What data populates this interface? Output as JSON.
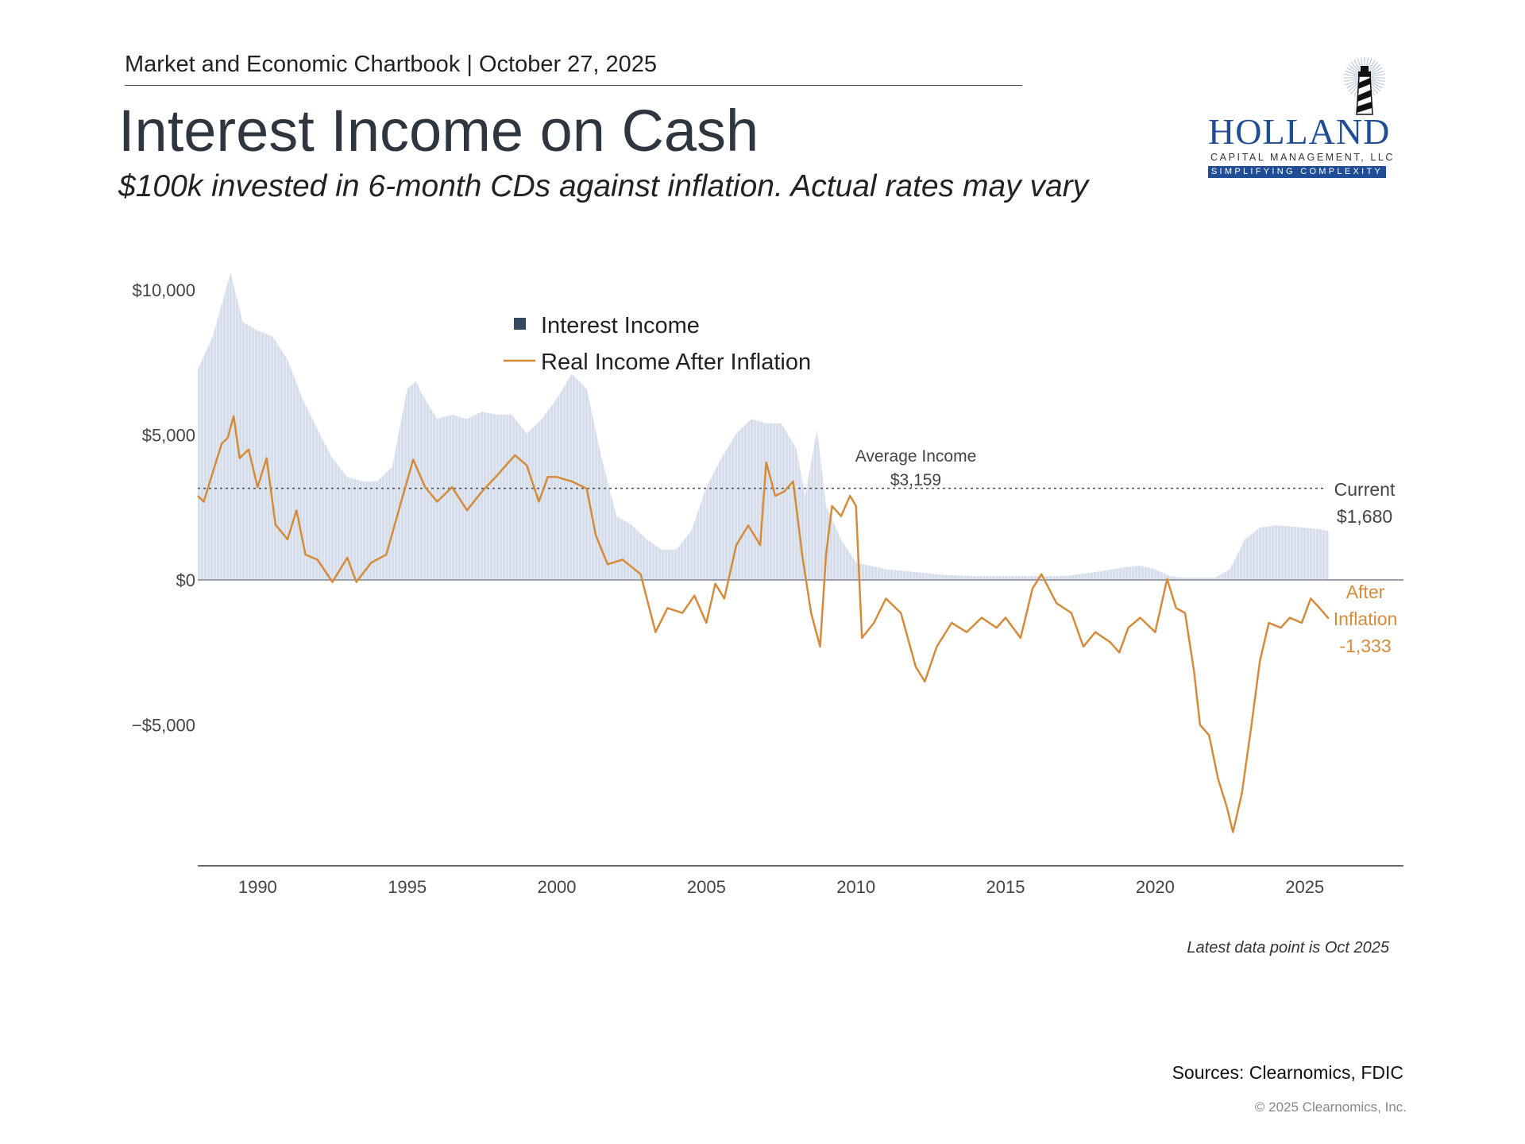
{
  "header": {
    "publication": "Market and Economic Chartbook | October 27, 2025",
    "title": "Interest Income on Cash",
    "subtitle": "$100k invested in 6-month CDs against inflation. Actual rates may vary"
  },
  "logo": {
    "name": "HOLLAND",
    "line2": "CAPITAL MANAGEMENT, LLC",
    "tagline": "SIMPLIFYING COMPLEXITY",
    "colors": {
      "brand": "#1f4e96"
    }
  },
  "chart_data": {
    "type": "area+line",
    "title": "",
    "xlabel": "",
    "ylabel": "",
    "xlim": [
      1988.0,
      2028.3
    ],
    "ylim": [
      -9860,
      10900
    ],
    "x_ticks": [
      1990,
      1995,
      2000,
      2005,
      2010,
      2015,
      2020,
      2025
    ],
    "x_tick_labels": [
      "1990",
      "1995",
      "2000",
      "2005",
      "2010",
      "2015",
      "2020",
      "2025"
    ],
    "y_ticks": [
      10000,
      5000,
      0,
      -5000
    ],
    "y_tick_labels": [
      "$10,000",
      "$5,000",
      "$0",
      "−$5,000"
    ],
    "grid": false,
    "legend": {
      "placement": "top-center",
      "entries": [
        "Interest Income",
        "Real Income After Inflation"
      ]
    },
    "colors": {
      "interest_income": "#d5deea",
      "interest_legend": "#34495e",
      "real_income": "#d58b3c",
      "average_line": "#555555"
    },
    "series": [
      {
        "name": "Interest Income",
        "type": "bar-area",
        "x": [
          1988.0,
          1988.5,
          1989.1,
          1989.5,
          1990.0,
          1990.5,
          1991.0,
          1991.5,
          1992.0,
          1992.5,
          1993.0,
          1993.5,
          1994.0,
          1994.5,
          1995.0,
          1995.3,
          1995.5,
          1996.0,
          1996.5,
          1997.0,
          1997.5,
          1998.0,
          1998.5,
          1999.0,
          1999.5,
          2000.0,
          2000.5,
          2001.0,
          2001.5,
          2002.0,
          2002.5,
          2003.0,
          2003.5,
          2004.0,
          2004.5,
          2005.0,
          2005.5,
          2006.0,
          2006.5,
          2007.0,
          2007.5,
          2008.0,
          2008.3,
          2008.7,
          2009.0,
          2009.5,
          2010.0,
          2011.0,
          2012.0,
          2013.0,
          2014.0,
          2015.0,
          2016.0,
          2017.0,
          2018.0,
          2019.0,
          2019.5,
          2020.0,
          2020.5,
          2021.0,
          2022.0,
          2022.5,
          2023.0,
          2023.5,
          2024.0,
          2024.5,
          2025.0,
          2025.5,
          2025.8
        ],
        "values": [
          7250,
          8400,
          10600,
          8900,
          8600,
          8400,
          7600,
          6250,
          5200,
          4200,
          3550,
          3400,
          3400,
          3900,
          6600,
          6850,
          6400,
          5550,
          5700,
          5550,
          5800,
          5700,
          5700,
          5050,
          5550,
          6250,
          7100,
          6600,
          4200,
          2200,
          1900,
          1400,
          1050,
          1050,
          1700,
          3200,
          4200,
          5050,
          5550,
          5400,
          5400,
          4550,
          2900,
          5200,
          2550,
          1400,
          600,
          370,
          270,
          170,
          130,
          130,
          130,
          130,
          270,
          440,
          500,
          370,
          130,
          70,
          70,
          370,
          1400,
          1800,
          1880,
          1850,
          1800,
          1750,
          1680
        ]
      },
      {
        "name": "Real Income After Inflation",
        "type": "line",
        "x": [
          1988.0,
          1988.2,
          1988.5,
          1988.8,
          1989.0,
          1989.2,
          1989.4,
          1989.7,
          1990.0,
          1990.3,
          1990.6,
          1991.0,
          1991.3,
          1991.6,
          1992.0,
          1992.5,
          1993.0,
          1993.3,
          1993.8,
          1994.3,
          1994.8,
          1995.2,
          1995.6,
          1996.0,
          1996.5,
          1997.0,
          1997.5,
          1998.0,
          1998.6,
          1999.0,
          1999.4,
          1999.7,
          2000.0,
          2000.5,
          2001.0,
          2001.3,
          2001.7,
          2002.2,
          2002.8,
          2003.3,
          2003.7,
          2004.2,
          2004.6,
          2005.0,
          2005.3,
          2005.6,
          2006.0,
          2006.4,
          2006.8,
          2007.0,
          2007.3,
          2007.6,
          2007.9,
          2008.2,
          2008.5,
          2008.8,
          2009.0,
          2009.2,
          2009.5,
          2009.8,
          2010.0,
          2010.2,
          2010.6,
          2011.0,
          2011.5,
          2012.0,
          2012.3,
          2012.7,
          2013.2,
          2013.7,
          2014.2,
          2014.7,
          2015.0,
          2015.5,
          2015.9,
          2016.2,
          2016.7,
          2017.2,
          2017.6,
          2018.0,
          2018.5,
          2018.8,
          2019.1,
          2019.5,
          2020.0,
          2020.4,
          2020.7,
          2021.0,
          2021.3,
          2021.5,
          2021.8,
          2022.1,
          2022.4,
          2022.6,
          2022.9,
          2023.2,
          2023.5,
          2023.8,
          2024.2,
          2024.5,
          2024.9,
          2025.2,
          2025.5,
          2025.8
        ],
        "values": [
          2900,
          2700,
          3700,
          4700,
          4900,
          5650,
          4200,
          4500,
          3200,
          4200,
          1900,
          1400,
          2400,
          870,
          700,
          -70,
          770,
          -70,
          600,
          870,
          2700,
          4150,
          3200,
          2700,
          3200,
          2400,
          3050,
          3600,
          4300,
          3950,
          2700,
          3550,
          3550,
          3400,
          3150,
          1550,
          540,
          700,
          200,
          -1800,
          -970,
          -1140,
          -540,
          -1480,
          -130,
          -640,
          1200,
          1880,
          1200,
          4050,
          2900,
          3050,
          3400,
          870,
          -1140,
          -2300,
          870,
          2550,
          2200,
          2900,
          2550,
          -2000,
          -1480,
          -640,
          -1140,
          -3000,
          -3500,
          -2300,
          -1480,
          -1800,
          -1300,
          -1650,
          -1300,
          -2000,
          -300,
          200,
          -800,
          -1140,
          -2300,
          -1800,
          -2150,
          -2500,
          -1650,
          -1300,
          -1800,
          30,
          -970,
          -1140,
          -3150,
          -5000,
          -5350,
          -6850,
          -7850,
          -8700,
          -7350,
          -5150,
          -2800,
          -1480,
          -1650,
          -1300,
          -1480,
          -640,
          -970,
          -1333
        ]
      }
    ],
    "reference_lines": [
      {
        "name": "Average Income",
        "value": 3159
      }
    ],
    "annotations": {
      "average_label": "Average Income",
      "average_value": "$3,159",
      "current_label": "Current",
      "current_value": "$1,680",
      "after_label_1": "After",
      "after_label_2": "Inflation",
      "after_value": "-1,333"
    }
  },
  "footer": {
    "latest": "Latest data point is Oct 2025",
    "sources": "Sources: Clearnomics, FDIC",
    "copyright": "© 2025 Clearnomics, Inc."
  }
}
